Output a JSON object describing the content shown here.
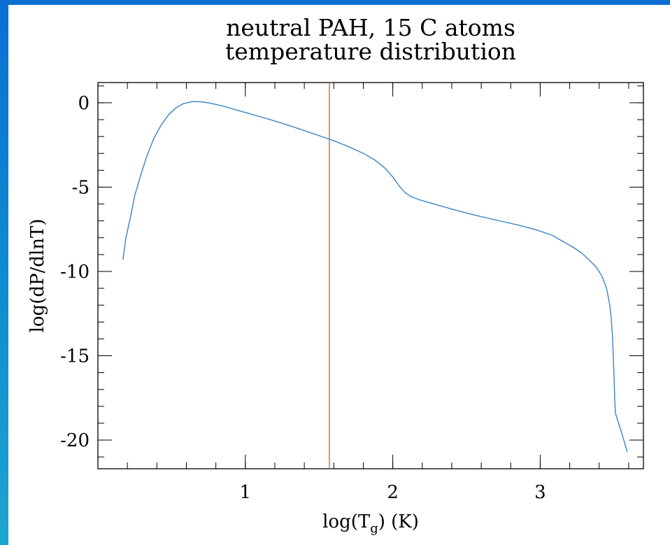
{
  "chart_data": {
    "type": "line",
    "title": "neutral PAH, 15 C atoms",
    "subtitle": "temperature distribution",
    "xlabel": {
      "prefix": "log(T",
      "subscript": "g",
      "suffix": ") (K)"
    },
    "ylabel": "log(dP/dlnT)",
    "xlim": [
      0.0,
      3.7
    ],
    "ylim": [
      -21.7,
      1.2
    ],
    "xticks": [
      {
        "value": 1,
        "label": "1"
      },
      {
        "value": 2,
        "label": "2"
      },
      {
        "value": 3,
        "label": "3"
      }
    ],
    "yticks": [
      {
        "value": 0,
        "label": "0"
      },
      {
        "value": -5,
        "label": "-5"
      },
      {
        "value": -10,
        "label": "-10"
      },
      {
        "value": -15,
        "label": "-15"
      },
      {
        "value": -20,
        "label": "-20"
      }
    ],
    "x_minor_step": 0.2,
    "y_minor_step": 1,
    "grid": false,
    "series": [
      {
        "color": "#3a85c8",
        "points": [
          [
            0.17,
            -9.3
          ],
          [
            0.19,
            -8.0
          ],
          [
            0.22,
            -6.8
          ],
          [
            0.25,
            -5.5
          ],
          [
            0.29,
            -4.3
          ],
          [
            0.33,
            -3.2
          ],
          [
            0.38,
            -2.1
          ],
          [
            0.43,
            -1.3
          ],
          [
            0.48,
            -0.7
          ],
          [
            0.53,
            -0.3
          ],
          [
            0.58,
            -0.05
          ],
          [
            0.64,
            0.07
          ],
          [
            0.7,
            0.06
          ],
          [
            0.76,
            -0.02
          ],
          [
            0.85,
            -0.2
          ],
          [
            0.95,
            -0.45
          ],
          [
            1.05,
            -0.7
          ],
          [
            1.15,
            -0.95
          ],
          [
            1.25,
            -1.22
          ],
          [
            1.35,
            -1.5
          ],
          [
            1.45,
            -1.8
          ],
          [
            1.55,
            -2.1
          ],
          [
            1.6,
            -2.25
          ],
          [
            1.7,
            -2.6
          ],
          [
            1.8,
            -3.0
          ],
          [
            1.88,
            -3.4
          ],
          [
            1.95,
            -3.9
          ],
          [
            2.0,
            -4.4
          ],
          [
            2.04,
            -4.9
          ],
          [
            2.08,
            -5.3
          ],
          [
            2.12,
            -5.55
          ],
          [
            2.18,
            -5.75
          ],
          [
            2.28,
            -6.0
          ],
          [
            2.4,
            -6.3
          ],
          [
            2.55,
            -6.65
          ],
          [
            2.7,
            -6.95
          ],
          [
            2.85,
            -7.25
          ],
          [
            2.98,
            -7.55
          ],
          [
            3.08,
            -7.85
          ],
          [
            3.15,
            -8.2
          ],
          [
            3.22,
            -8.55
          ],
          [
            3.28,
            -8.9
          ],
          [
            3.33,
            -9.3
          ],
          [
            3.38,
            -9.75
          ],
          [
            3.42,
            -10.3
          ],
          [
            3.45,
            -11.0
          ],
          [
            3.47,
            -11.9
          ],
          [
            3.48,
            -12.6
          ],
          [
            3.49,
            -13.8
          ],
          [
            3.5,
            -16.0
          ],
          [
            3.505,
            -17.5
          ],
          [
            3.51,
            -18.4
          ],
          [
            3.55,
            -19.5
          ],
          [
            3.59,
            -20.7
          ]
        ]
      }
    ],
    "annotations": [
      {
        "type": "vertical-line",
        "x": 1.57,
        "color": "#e0622a"
      }
    ]
  }
}
